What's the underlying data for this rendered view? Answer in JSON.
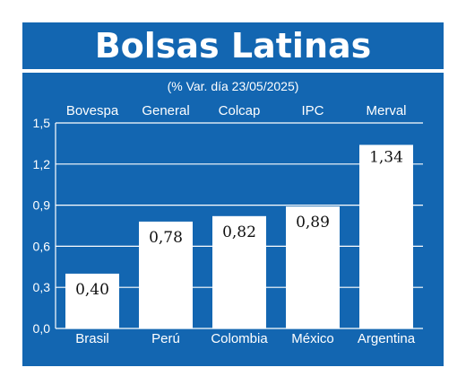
{
  "chart_data": {
    "type": "bar",
    "title": "Bolsas Latinas",
    "subtitle": "(% Var. día 23/05/2025)",
    "indices": [
      "Bovespa",
      "General",
      "Colcap",
      "IPC",
      "Merval"
    ],
    "categories": [
      "Brasil",
      "Perú",
      "Colombia",
      "México",
      "Argentina"
    ],
    "values": [
      0.4,
      0.78,
      0.82,
      0.89,
      1.34
    ],
    "value_labels": [
      "0,40",
      "0,78",
      "0,82",
      "0,89",
      "1,34"
    ],
    "yticks": [
      0.0,
      0.3,
      0.6,
      0.9,
      1.2,
      1.5
    ],
    "ytick_labels": [
      "0,0",
      "0,3",
      "0,6",
      "0,9",
      "1,2",
      "1,5"
    ],
    "ylim": [
      0,
      1.5
    ],
    "grid": true,
    "xlabel": "",
    "ylabel": ""
  },
  "colors": {
    "background": "#1366b1",
    "bar": "#ffffff",
    "grid": "#ffffff"
  }
}
